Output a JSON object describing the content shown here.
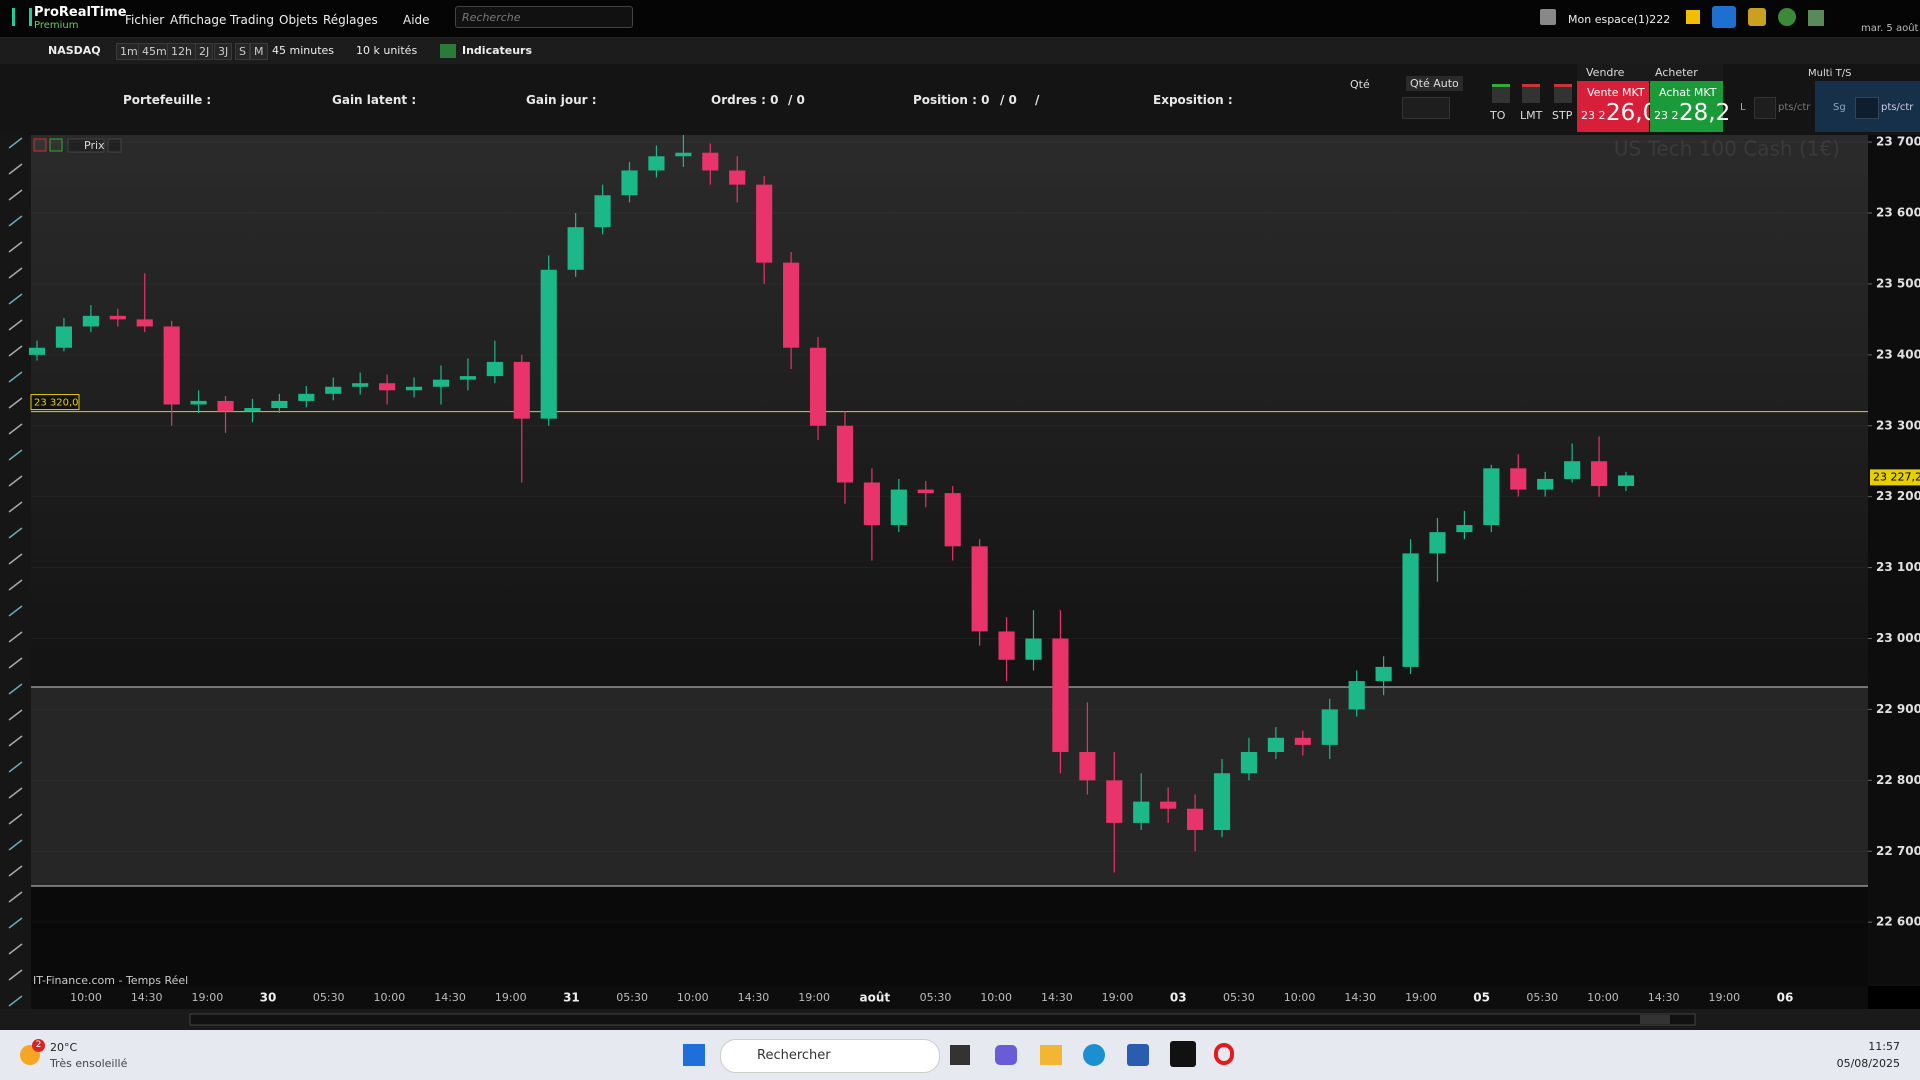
{
  "app": {
    "name": "ProRealTime",
    "edition": "Premium",
    "menu": [
      "Fichier",
      "Affichage",
      "Trading",
      "Objets",
      "Réglages"
    ],
    "help": "Aide",
    "search_placeholder": "Recherche",
    "workspace": "Mon espace(1)222",
    "date": "mar. 5 août"
  },
  "toolbar": {
    "instrument": "NASDAQ",
    "timeframes": [
      "1m",
      "45m",
      "12h",
      "2J",
      "3J",
      "S",
      "M"
    ],
    "interval": "45 minutes",
    "size": "10 k unités",
    "indicators": "Indicateurs"
  },
  "info_panel": [
    "Portefeuille :",
    "Gain latent :",
    "Gain jour :",
    "Ordres : 0",
    "/ 0",
    "Position : 0",
    "/ 0",
    "/",
    "Exposition :"
  ],
  "order_panel": {
    "qty": "Qté",
    "qty_auto": "Qté Auto",
    "order_types": [
      "TO",
      "LMT",
      "STP"
    ],
    "sell": "Vendre",
    "buy": "Acheter",
    "sell_mkt": "Vente MKT",
    "buy_mkt": "Achat MKT",
    "sell_price_prefix": "23 2",
    "sell_price": "26,0",
    "buy_price_prefix": "23 2",
    "buy_price": "28,2",
    "loss": "L",
    "loss_unit": "pts/ctr",
    "gain": "Sg",
    "gain_unit": "pts/ctr",
    "multi": "Multi T/S"
  },
  "chart_data": {
    "type": "candlestick",
    "title": "US Tech 100 Cash (1€)",
    "price_button": "Prix",
    "source": "IT-Finance.com - Temps Réel",
    "categories": [
      "10:00",
      "14:30",
      "19:00",
      "30",
      "05:30",
      "10:00",
      "14:30",
      "19:00",
      "31",
      "05:30",
      "10:00",
      "14:30",
      "19:00",
      "août",
      "05:30",
      "10:00",
      "14:30",
      "19:00",
      "03",
      "05:30",
      "10:00",
      "14:30",
      "19:00",
      "05",
      "05:30",
      "10:00",
      "14:30",
      "19:00",
      "06"
    ],
    "candles": [
      [
        23400,
        23420,
        23392,
        23410
      ],
      [
        23410,
        23452,
        23405,
        23440
      ],
      [
        23440,
        23470,
        23432,
        23455
      ],
      [
        23455,
        23465,
        23440,
        23450
      ],
      [
        23450,
        23515,
        23432,
        23440
      ],
      [
        23440,
        23448,
        23300,
        23330
      ],
      [
        23330,
        23350,
        23318,
        23335
      ],
      [
        23335,
        23342,
        23290,
        23320
      ],
      [
        23320,
        23338,
        23305,
        23325
      ],
      [
        23325,
        23345,
        23318,
        23335
      ],
      [
        23335,
        23356,
        23326,
        23345
      ],
      [
        23345,
        23368,
        23336,
        23355
      ],
      [
        23355,
        23375,
        23344,
        23360
      ],
      [
        23360,
        23372,
        23330,
        23350
      ],
      [
        23350,
        23368,
        23340,
        23355
      ],
      [
        23355,
        23385,
        23330,
        23365
      ],
      [
        23365,
        23395,
        23350,
        23370
      ],
      [
        23370,
        23420,
        23360,
        23390
      ],
      [
        23390,
        23400,
        23220,
        23310
      ],
      [
        23310,
        23540,
        23300,
        23520
      ],
      [
        23520,
        23600,
        23510,
        23580
      ],
      [
        23580,
        23640,
        23570,
        23625
      ],
      [
        23625,
        23672,
        23615,
        23660
      ],
      [
        23660,
        23695,
        23650,
        23680
      ],
      [
        23680,
        23712,
        23665,
        23685
      ],
      [
        23685,
        23698,
        23640,
        23660
      ],
      [
        23660,
        23680,
        23615,
        23640
      ],
      [
        23640,
        23652,
        23500,
        23530
      ],
      [
        23530,
        23545,
        23380,
        23410
      ],
      [
        23410,
        23425,
        23280,
        23300
      ],
      [
        23300,
        23320,
        23190,
        23220
      ],
      [
        23220,
        23240,
        23110,
        23160
      ],
      [
        23160,
        23225,
        23150,
        23210
      ],
      [
        23210,
        23222,
        23185,
        23205
      ],
      [
        23205,
        23215,
        23110,
        23130
      ],
      [
        23130,
        23140,
        22990,
        23010
      ],
      [
        23010,
        23030,
        22940,
        22970
      ],
      [
        22970,
        23040,
        22955,
        23000
      ],
      [
        23000,
        23040,
        22810,
        22840
      ],
      [
        22840,
        22910,
        22780,
        22800
      ],
      [
        22800,
        22840,
        22670,
        22740
      ],
      [
        22740,
        22810,
        22730,
        22770
      ],
      [
        22770,
        22790,
        22740,
        22760
      ],
      [
        22760,
        22780,
        22700,
        22730
      ],
      [
        22730,
        22830,
        22720,
        22810
      ],
      [
        22810,
        22860,
        22800,
        22840
      ],
      [
        22840,
        22875,
        22830,
        22860
      ],
      [
        22860,
        22870,
        22835,
        22850
      ],
      [
        22850,
        22915,
        22830,
        22900
      ],
      [
        22900,
        22955,
        22890,
        22940
      ],
      [
        22940,
        22975,
        22920,
        22960
      ],
      [
        22960,
        23140,
        22950,
        23120
      ],
      [
        23120,
        23170,
        23080,
        23150
      ],
      [
        23150,
        23180,
        23140,
        23160
      ],
      [
        23160,
        23245,
        23150,
        23240
      ],
      [
        23240,
        23260,
        23200,
        23210
      ],
      [
        23210,
        23235,
        23200,
        23225
      ],
      [
        23225,
        23275,
        23220,
        23250
      ],
      [
        23250,
        23285,
        23200,
        23215
      ],
      [
        23215,
        23235,
        23208,
        23230
      ]
    ],
    "ylim": [
      22510,
      23710
    ],
    "yticks": [
      {
        "value": 23700,
        "label": "23 700"
      },
      {
        "value": 23600,
        "label": "23 600"
      },
      {
        "value": 23500,
        "label": "23 500"
      },
      {
        "value": 23400,
        "label": "23 400"
      },
      {
        "value": 23300,
        "label": "23 300"
      },
      {
        "value": 23200,
        "label": "23 200"
      },
      {
        "value": 23100,
        "label": "23 100"
      },
      {
        "value": 23000,
        "label": "23 000"
      },
      {
        "value": 22900,
        "label": "22 900"
      },
      {
        "value": 22800,
        "label": "22 800"
      },
      {
        "value": 22700,
        "label": "22 700"
      },
      {
        "value": 22600,
        "label": "22 600"
      }
    ],
    "level": {
      "value": 23320,
      "label": "23 320,0"
    },
    "last": {
      "value": 23227.2,
      "label": "23 227,2"
    },
    "up_color": "#1db88a",
    "down_color": "#e8336b",
    "level_color": "#e6d000",
    "grid": true
  },
  "taskbar": {
    "temperature": "20°C",
    "weather": "Très ensoleillé",
    "badge": "2",
    "search": "Rechercher",
    "time": "11:57",
    "date": "05/08/2025"
  }
}
